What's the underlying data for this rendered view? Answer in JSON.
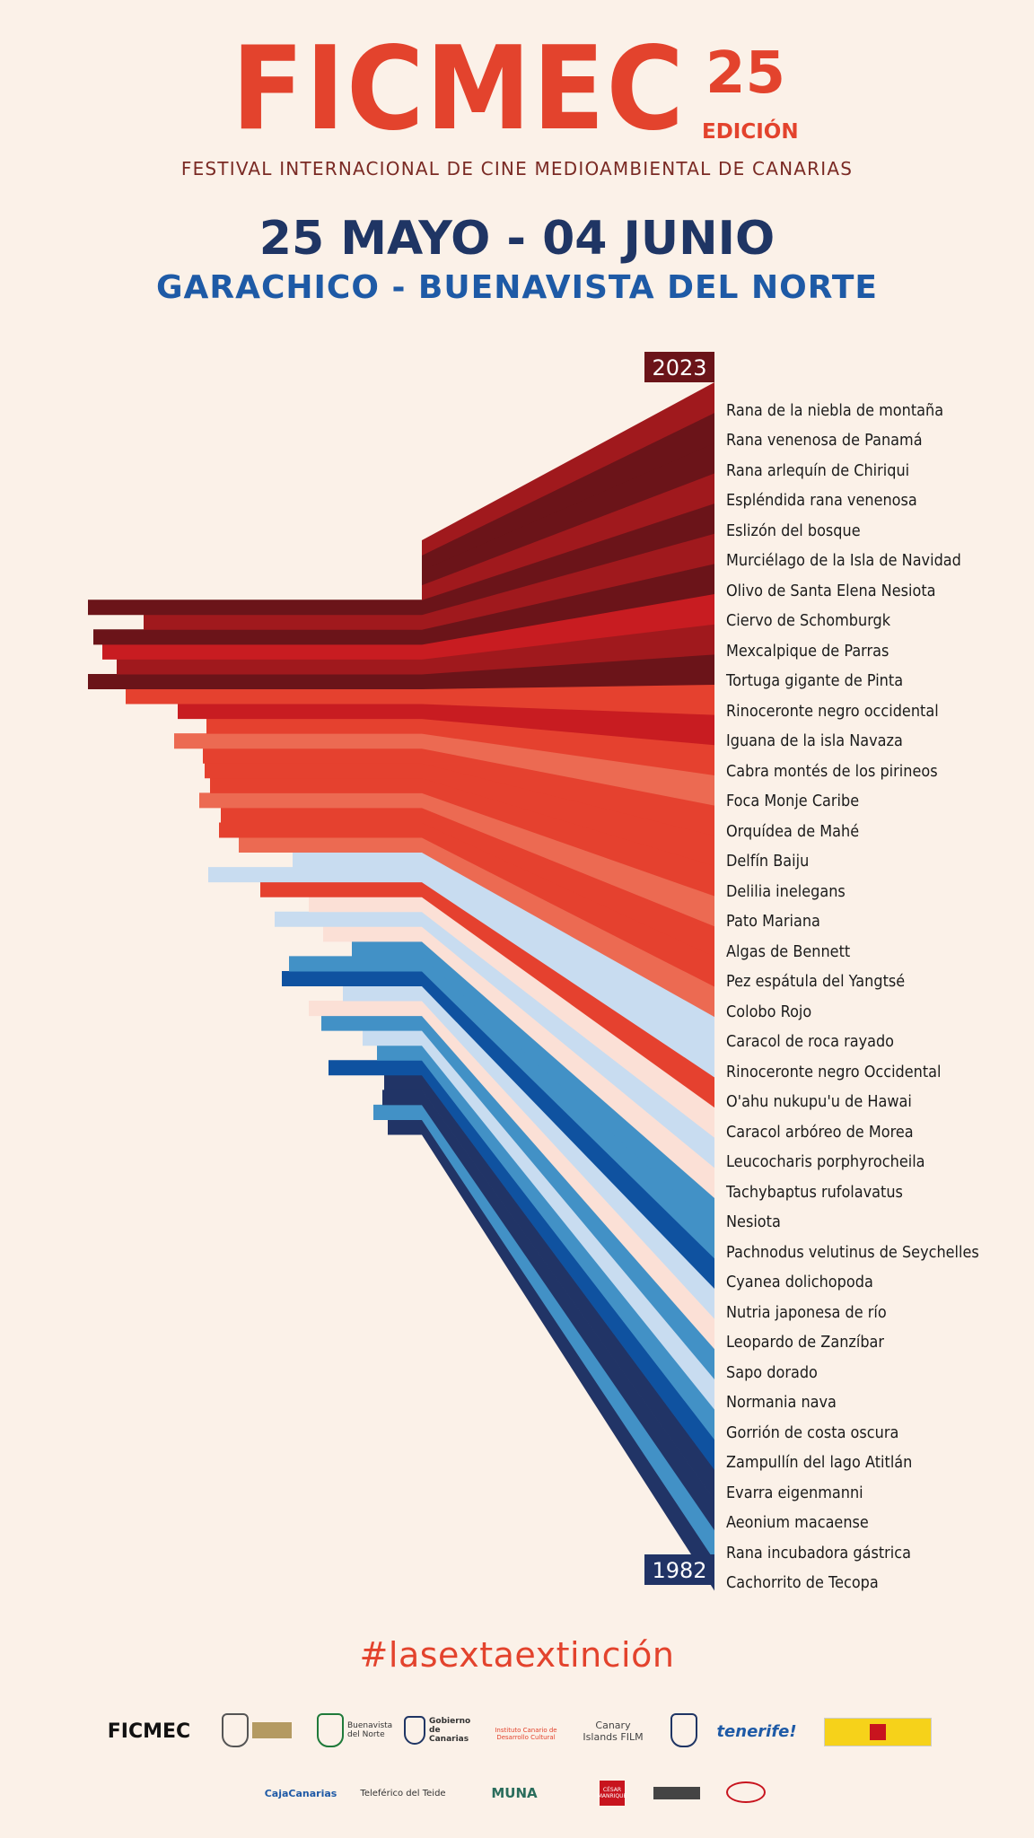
{
  "header": {
    "logo": "FICMEC",
    "edition_number": "25",
    "edition_label": "EDICIÓN",
    "subtitle": "FESTIVAL INTERNACIONAL DE CINE MEDIOAMBIENTAL DE CANARIAS",
    "dates": "25 MAYO - 04 JUNIO",
    "location": "GARACHICO - BUENAVISTA DEL NORTE"
  },
  "chart_data": {
    "type": "other",
    "top_label": "2023",
    "bottom_label": "1982",
    "palette": [
      "#6b1419",
      "#a0191d",
      "#c81c21",
      "#e5412f",
      "#ec6a52",
      "#fbe0d6",
      "#c8dcf0",
      "#4291c6",
      "#0f52a0",
      "#213466"
    ],
    "species": [
      {
        "name": "Rana de la niebla de montaña",
        "color": "#a0191d",
        "jut": 0
      },
      {
        "name": "Rana venenosa de Panamá",
        "color": "#6b1419",
        "jut": 0
      },
      {
        "name": "Rana arlequín de Chiriqui",
        "color": "#6b1419",
        "jut": 0
      },
      {
        "name": "Espléndida rana venenosa",
        "color": "#a0191d",
        "jut": 0
      },
      {
        "name": "Eslizón del bosque",
        "color": "#6b1419",
        "jut": 98
      },
      {
        "name": "Murciélago de la Isla de Navidad",
        "color": "#a0191d",
        "jut": 160
      },
      {
        "name": "Olivo de Santa Elena Nesiota",
        "color": "#6b1419",
        "jut": 104
      },
      {
        "name": "Ciervo de Schomburgk",
        "color": "#c81c21",
        "jut": 114
      },
      {
        "name": "Mexcalpique de Parras",
        "color": "#a0191d",
        "jut": 130
      },
      {
        "name": "Tortuga gigante de Pinta",
        "color": "#6b1419",
        "jut": 98
      },
      {
        "name": "Rinoceronte negro occidental",
        "color": "#e5412f",
        "jut": 140
      },
      {
        "name": "Iguana de la isla Navaza",
        "color": "#c81c21",
        "jut": 198
      },
      {
        "name": "Cabra montés de los pirineos",
        "color": "#e5412f",
        "jut": 230
      },
      {
        "name": "Foca Monje Caribe",
        "color": "#ec6a52",
        "jut": 194
      },
      {
        "name": "Orquídea de Mahé",
        "color": "#e5412f",
        "jut": 226
      },
      {
        "name": "Delfín Baiju",
        "color": "#e5412f",
        "jut": 228
      },
      {
        "name": "Delilia inelegans",
        "color": "#e5412f",
        "jut": 234
      },
      {
        "name": "Pato Mariana",
        "color": "#ec6a52",
        "jut": 222
      },
      {
        "name": "Algas de Bennett",
        "color": "#e5412f",
        "jut": 246
      },
      {
        "name": "Pez espátula del Yangtsé",
        "color": "#e5412f",
        "jut": 244
      },
      {
        "name": "Colobo Rojo",
        "color": "#ec6a52",
        "jut": 266
      },
      {
        "name": "Caracol de roca rayado",
        "color": "#c8dcf0",
        "jut": 326
      },
      {
        "name": "Rinoceronte negro Occidental",
        "color": "#c8dcf0",
        "jut": 232
      },
      {
        "name": "O'ahu nukupu'u de Hawai",
        "color": "#e5412f",
        "jut": 290
      },
      {
        "name": "Caracol arbóreo de Morea",
        "color": "#fbe0d6",
        "jut": 344
      },
      {
        "name": "Leucocharis porphyrocheila",
        "color": "#c8dcf0",
        "jut": 306
      },
      {
        "name": "Tachybaptus rufolavatus",
        "color": "#fbe0d6",
        "jut": 360
      },
      {
        "name": "Nesiota",
        "color": "#4291c6",
        "jut": 392
      },
      {
        "name": "Pachnodus velutinus de Seychelles",
        "color": "#4291c6",
        "jut": 322
      },
      {
        "name": "Cyanea dolichopoda",
        "color": "#0f52a0",
        "jut": 314
      },
      {
        "name": "Nutria japonesa de río",
        "color": "#c8dcf0",
        "jut": 382
      },
      {
        "name": "Leopardo de Zanzíbar",
        "color": "#fbe0d6",
        "jut": 344
      },
      {
        "name": "Sapo dorado",
        "color": "#4291c6",
        "jut": 358
      },
      {
        "name": "Normania nava",
        "color": "#c8dcf0",
        "jut": 404
      },
      {
        "name": "Gorrión de costa oscura",
        "color": "#4291c6",
        "jut": 420
      },
      {
        "name": "Zampullín del lago Atitlán",
        "color": "#0f52a0",
        "jut": 366
      },
      {
        "name": "Evarra eigenmanni",
        "color": "#213466",
        "jut": 428
      },
      {
        "name": "Aeonium macaense",
        "color": "#213466",
        "jut": 426
      },
      {
        "name": "Rana incubadora gástrica",
        "color": "#4291c6",
        "jut": 416
      },
      {
        "name": "Cachorrito de Tecopa",
        "color": "#213466",
        "jut": 432
      }
    ]
  },
  "hashtag": "#lasextaextinción",
  "sponsors_row1": [
    "FICMEC",
    "Buenavista del Norte",
    "Gobierno de Canarias",
    "Instituto Canario de Desarrollo Cultural",
    "Canary Islands FILM",
    "tenerife!"
  ],
  "sponsors_row2": [
    "CajaCanarias",
    "Teleférico del Teide",
    "MUNA",
    "CÉSAR MANRIQUE"
  ],
  "icons": [
    "coat-of-arms-icon",
    "emblem-icon",
    "spain-flag-icon"
  ]
}
